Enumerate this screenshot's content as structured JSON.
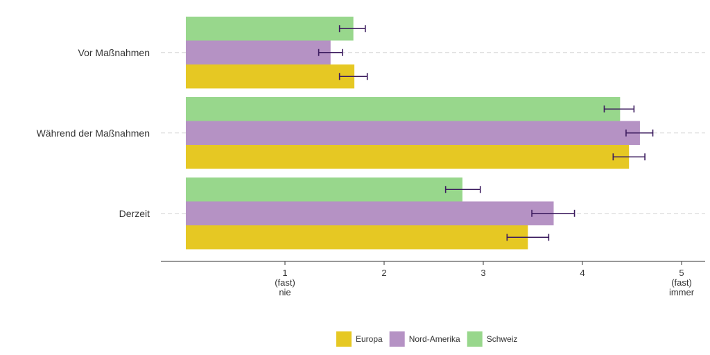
{
  "chart_data": {
    "type": "bar",
    "orientation": "horizontal",
    "categories": [
      "Vor Maßnahmen",
      "Während der Maßnahmen",
      "Derzeit"
    ],
    "series": [
      {
        "name": "Schweiz",
        "color": "#98d78c",
        "values": [
          1.69,
          4.38,
          2.79
        ],
        "error_low": [
          1.55,
          4.22,
          2.62
        ],
        "error_high": [
          1.81,
          4.52,
          2.97
        ]
      },
      {
        "name": "Nord-Amerika",
        "color": "#b592c4",
        "values": [
          1.46,
          4.58,
          3.71
        ],
        "error_low": [
          1.34,
          4.44,
          3.49
        ],
        "error_high": [
          1.58,
          4.71,
          3.92
        ]
      },
      {
        "name": "Europa",
        "color": "#e6c823",
        "values": [
          1.7,
          4.47,
          3.45
        ],
        "error_low": [
          1.55,
          4.31,
          3.24
        ],
        "error_high": [
          1.83,
          4.63,
          3.66
        ]
      }
    ],
    "error_bar_color": "#3b1b5e",
    "xlim": [
      0,
      5.25
    ],
    "xticks": [
      {
        "value": 1,
        "lines": [
          "1",
          "(fast)",
          "nie"
        ]
      },
      {
        "value": 2,
        "lines": [
          "2"
        ]
      },
      {
        "value": 3,
        "lines": [
          "3"
        ]
      },
      {
        "value": 4,
        "lines": [
          "4"
        ]
      },
      {
        "value": 5,
        "lines": [
          "5",
          "(fast)",
          "immer"
        ]
      }
    ],
    "legend": {
      "position": "bottom",
      "entries": [
        {
          "name": "Europa",
          "color": "#e6c823"
        },
        {
          "name": "Nord-Amerika",
          "color": "#b592c4"
        },
        {
          "name": "Schweiz",
          "color": "#98d78c"
        }
      ]
    },
    "grid": "dashed-category-lines",
    "title": "",
    "xlabel": "",
    "ylabel": ""
  }
}
